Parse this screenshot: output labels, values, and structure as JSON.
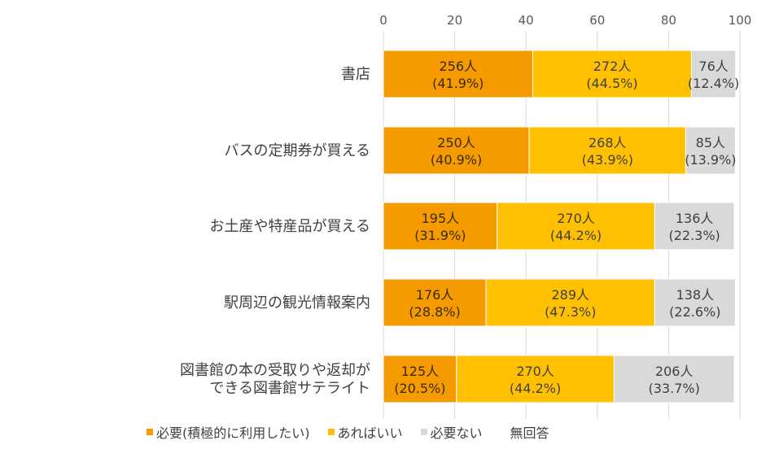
{
  "chart_data": {
    "type": "bar",
    "orientation": "horizontal",
    "stacked": true,
    "xlim": [
      0,
      100
    ],
    "x_ticks": [
      "0",
      "20",
      "40",
      "60",
      "80",
      "100"
    ],
    "x_axis_position": "top",
    "grid": true,
    "legend_position": "bottom",
    "categories": [
      [
        "書店"
      ],
      [
        "バスの定期券が買える"
      ],
      [
        "お土産や特産品が買える"
      ],
      [
        "駅周辺の観光情報案内"
      ],
      [
        "図書館の本の受取りや返却が",
        "できる図書館サテライト"
      ]
    ],
    "series": [
      {
        "name": "必要(積極的に利用したい)",
        "color": "#F59B00",
        "values": [
          41.9,
          40.9,
          31.9,
          28.8,
          20.5
        ],
        "labels": [
          [
            "256人",
            "(41.9%)"
          ],
          [
            "250人",
            "(40.9%)"
          ],
          [
            "195人",
            "(31.9%)"
          ],
          [
            "176人",
            "(28.8%)"
          ],
          [
            "125人",
            "(20.5%)"
          ]
        ]
      },
      {
        "name": "あればいい",
        "color": "#FFC000",
        "values": [
          44.5,
          43.9,
          44.2,
          47.3,
          44.2
        ],
        "labels": [
          [
            "272人",
            "(44.5%)"
          ],
          [
            "268人",
            "(43.9%)"
          ],
          [
            "270人",
            "(44.2%)"
          ],
          [
            "289人",
            "(47.3%)"
          ],
          [
            "270人",
            "(44.2%)"
          ]
        ]
      },
      {
        "name": "必要ない",
        "color": "#D9D9D9",
        "values": [
          12.4,
          13.9,
          22.3,
          22.6,
          33.7
        ],
        "labels": [
          [
            "76人",
            "(12.4%)"
          ],
          [
            "85人",
            "(13.9%)"
          ],
          [
            "136人",
            "(22.3%)"
          ],
          [
            "138人",
            "(22.6%)"
          ],
          [
            "206人",
            "(33.7%)"
          ]
        ]
      },
      {
        "name": "無回答",
        "color": "#FFFFFF",
        "values": [
          0,
          0,
          0,
          0,
          0
        ],
        "labels": []
      }
    ]
  }
}
